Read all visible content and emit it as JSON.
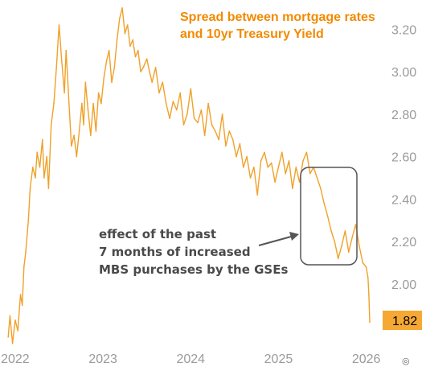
{
  "chart_data": {
    "type": "line",
    "title_lines": [
      "Spread between mortgage rates",
      "and 10yr Treasury Yield"
    ],
    "xlabel": "",
    "ylabel": "",
    "x_tick_labels": [
      "2022",
      "2023",
      "2024",
      "2025",
      "2026"
    ],
    "y_ticks": [
      2.0,
      2.2,
      2.4,
      2.6,
      2.8,
      3.0,
      3.2
    ],
    "y_tick_labels": [
      "2.00",
      "2.20",
      "2.40",
      "2.60",
      "2.80",
      "3.00",
      "3.20"
    ],
    "xlim": [
      2021.9,
      2026.15
    ],
    "ylim": [
      1.7,
      3.33
    ],
    "grid": false,
    "last_value_label": "1.82",
    "annotation_lines": [
      "effect of the past",
      "7 months of increased",
      "MBS purchases by the GSEs"
    ],
    "footer_symbol": "◎",
    "colors": {
      "line": "#F0A12A",
      "title": "#F28A00",
      "ticks": "#9B9B9B",
      "last_value_bg": "#F5A833",
      "annotation_text": "#4A4A4A",
      "arrow": "#555555",
      "box": "#555555"
    },
    "series": [
      {
        "x": [
          2021.92,
          2021.94,
          2021.97,
          2022.0,
          2022.03,
          2022.06,
          2022.08,
          2022.1,
          2022.12,
          2022.15,
          2022.17,
          2022.2,
          2022.23,
          2022.25,
          2022.28,
          2022.31,
          2022.33,
          2022.36,
          2022.38,
          2022.41,
          2022.44,
          2022.47,
          2022.5,
          2022.53,
          2022.56,
          2022.58,
          2022.6,
          2022.62,
          2022.64,
          2022.67,
          2022.7,
          2022.73,
          2022.76,
          2022.78,
          2022.8,
          2022.83,
          2022.86,
          2022.89,
          2022.92,
          2022.95,
          2022.98,
          2023.01,
          2023.04,
          2023.07,
          2023.1,
          2023.13,
          2023.16,
          2023.19,
          2023.22,
          2023.25,
          2023.28,
          2023.31,
          2023.34,
          2023.37,
          2023.4,
          2023.43,
          2023.46,
          2023.5,
          2023.53,
          2023.56,
          2023.6,
          2023.64,
          2023.68,
          2023.72,
          2023.76,
          2023.8,
          2023.84,
          2023.88,
          2023.92,
          2023.96,
          2024.0,
          2024.04,
          2024.08,
          2024.12,
          2024.16,
          2024.2,
          2024.24,
          2024.28,
          2024.32,
          2024.36,
          2024.4,
          2024.44,
          2024.48,
          2024.52,
          2024.56,
          2024.6,
          2024.64,
          2024.68,
          2024.72,
          2024.76,
          2024.8,
          2024.84,
          2024.88,
          2024.92,
          2024.96,
          2025.0,
          2025.04,
          2025.08,
          2025.12,
          2025.16,
          2025.2,
          2025.24,
          2025.28,
          2025.32,
          2025.36,
          2025.4,
          2025.44,
          2025.48,
          2025.52,
          2025.56,
          2025.6,
          2025.64,
          2025.68,
          2025.72,
          2025.76,
          2025.8,
          2025.84,
          2025.88,
          2025.92,
          2025.96,
          2026.0,
          2026.02,
          2026.03,
          2026.04
        ],
        "y": [
          1.75,
          1.85,
          1.72,
          1.83,
          1.78,
          1.95,
          1.9,
          2.08,
          2.15,
          2.3,
          2.45,
          2.55,
          2.5,
          2.62,
          2.55,
          2.68,
          2.5,
          2.6,
          2.45,
          2.75,
          2.85,
          3.02,
          3.22,
          3.05,
          2.9,
          3.1,
          2.95,
          2.8,
          2.65,
          2.7,
          2.6,
          2.72,
          2.85,
          2.75,
          2.95,
          2.82,
          2.7,
          2.85,
          2.72,
          2.9,
          2.85,
          2.97,
          3.05,
          3.1,
          2.95,
          3.02,
          3.15,
          3.25,
          3.3,
          3.18,
          3.22,
          3.12,
          3.15,
          3.07,
          3.1,
          3.0,
          3.02,
          3.06,
          3.0,
          2.95,
          3.02,
          2.9,
          2.95,
          2.85,
          2.78,
          2.86,
          2.82,
          2.9,
          2.75,
          2.8,
          2.92,
          2.78,
          2.76,
          2.82,
          2.7,
          2.85,
          2.75,
          2.72,
          2.68,
          2.8,
          2.65,
          2.72,
          2.68,
          2.6,
          2.66,
          2.55,
          2.6,
          2.5,
          2.55,
          2.42,
          2.58,
          2.62,
          2.55,
          2.57,
          2.48,
          2.55,
          2.62,
          2.52,
          2.58,
          2.45,
          2.55,
          2.48,
          2.58,
          2.62,
          2.52,
          2.55,
          2.5,
          2.45,
          2.38,
          2.32,
          2.25,
          2.2,
          2.12,
          2.18,
          2.25,
          2.15,
          2.22,
          2.28,
          2.18,
          2.1,
          2.08,
          2.03,
          1.95,
          1.82
        ]
      }
    ]
  }
}
